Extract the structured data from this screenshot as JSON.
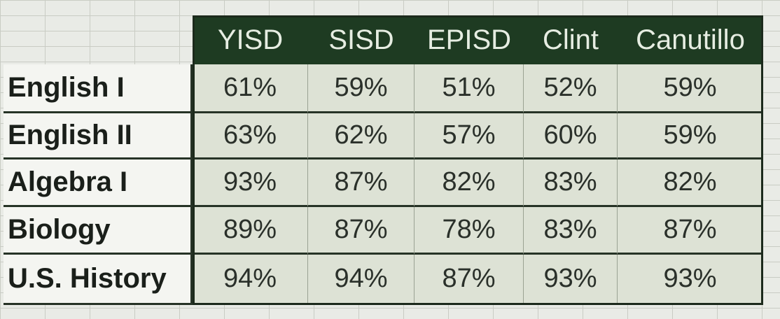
{
  "table": {
    "columns": [
      "YISD",
      "SISD",
      "EPISD",
      "Clint",
      "Canutillo"
    ],
    "rows": [
      {
        "label": "English I",
        "cells": [
          "61%",
          "59%",
          "51%",
          "52%",
          "59%"
        ]
      },
      {
        "label": "English II",
        "cells": [
          "63%",
          "62%",
          "57%",
          "60%",
          "59%"
        ]
      },
      {
        "label": "Algebra I",
        "cells": [
          "93%",
          "87%",
          "82%",
          "83%",
          "82%"
        ]
      },
      {
        "label": "Biology",
        "cells": [
          "89%",
          "87%",
          "78%",
          "83%",
          "87%"
        ]
      },
      {
        "label": "U.S. History",
        "cells": [
          "94%",
          "94%",
          "87%",
          "93%",
          "93%"
        ]
      }
    ]
  }
}
